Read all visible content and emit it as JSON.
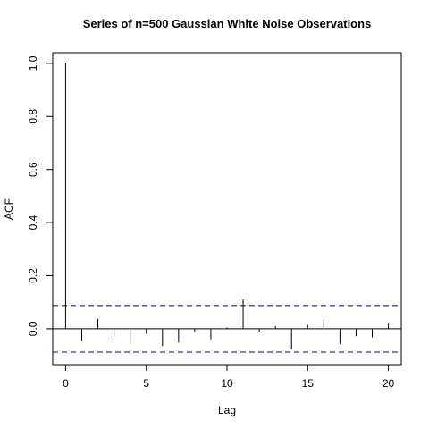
{
  "chart_data": {
    "type": "bar",
    "title": "Series of n=500 Gaussian White Noise Observations",
    "xlabel": "Lag",
    "ylabel": "ACF",
    "xlim": [
      -0.8,
      20.8
    ],
    "ylim": [
      -0.135,
      1.04
    ],
    "x_ticks": [
      0,
      5,
      10,
      15,
      20
    ],
    "y_ticks": [
      0.0,
      0.2,
      0.4,
      0.6,
      0.8,
      1.0
    ],
    "y_tick_labels": [
      "0.0",
      "0.2",
      "0.4",
      "0.6",
      "0.8",
      "1.0"
    ],
    "lags": [
      0,
      1,
      2,
      3,
      4,
      5,
      6,
      7,
      8,
      9,
      10,
      11,
      12,
      13,
      14,
      15,
      16,
      17,
      18,
      19,
      20
    ],
    "values": [
      1.0,
      -0.045,
      0.038,
      -0.03,
      -0.055,
      -0.02,
      -0.065,
      -0.052,
      -0.012,
      -0.04,
      0.005,
      0.112,
      -0.01,
      0.01,
      -0.077,
      0.015,
      0.035,
      -0.057,
      -0.028,
      -0.032,
      0.022
    ],
    "confidence_bounds": [
      0.0877,
      -0.0877
    ],
    "grid": false,
    "legend": "none"
  }
}
